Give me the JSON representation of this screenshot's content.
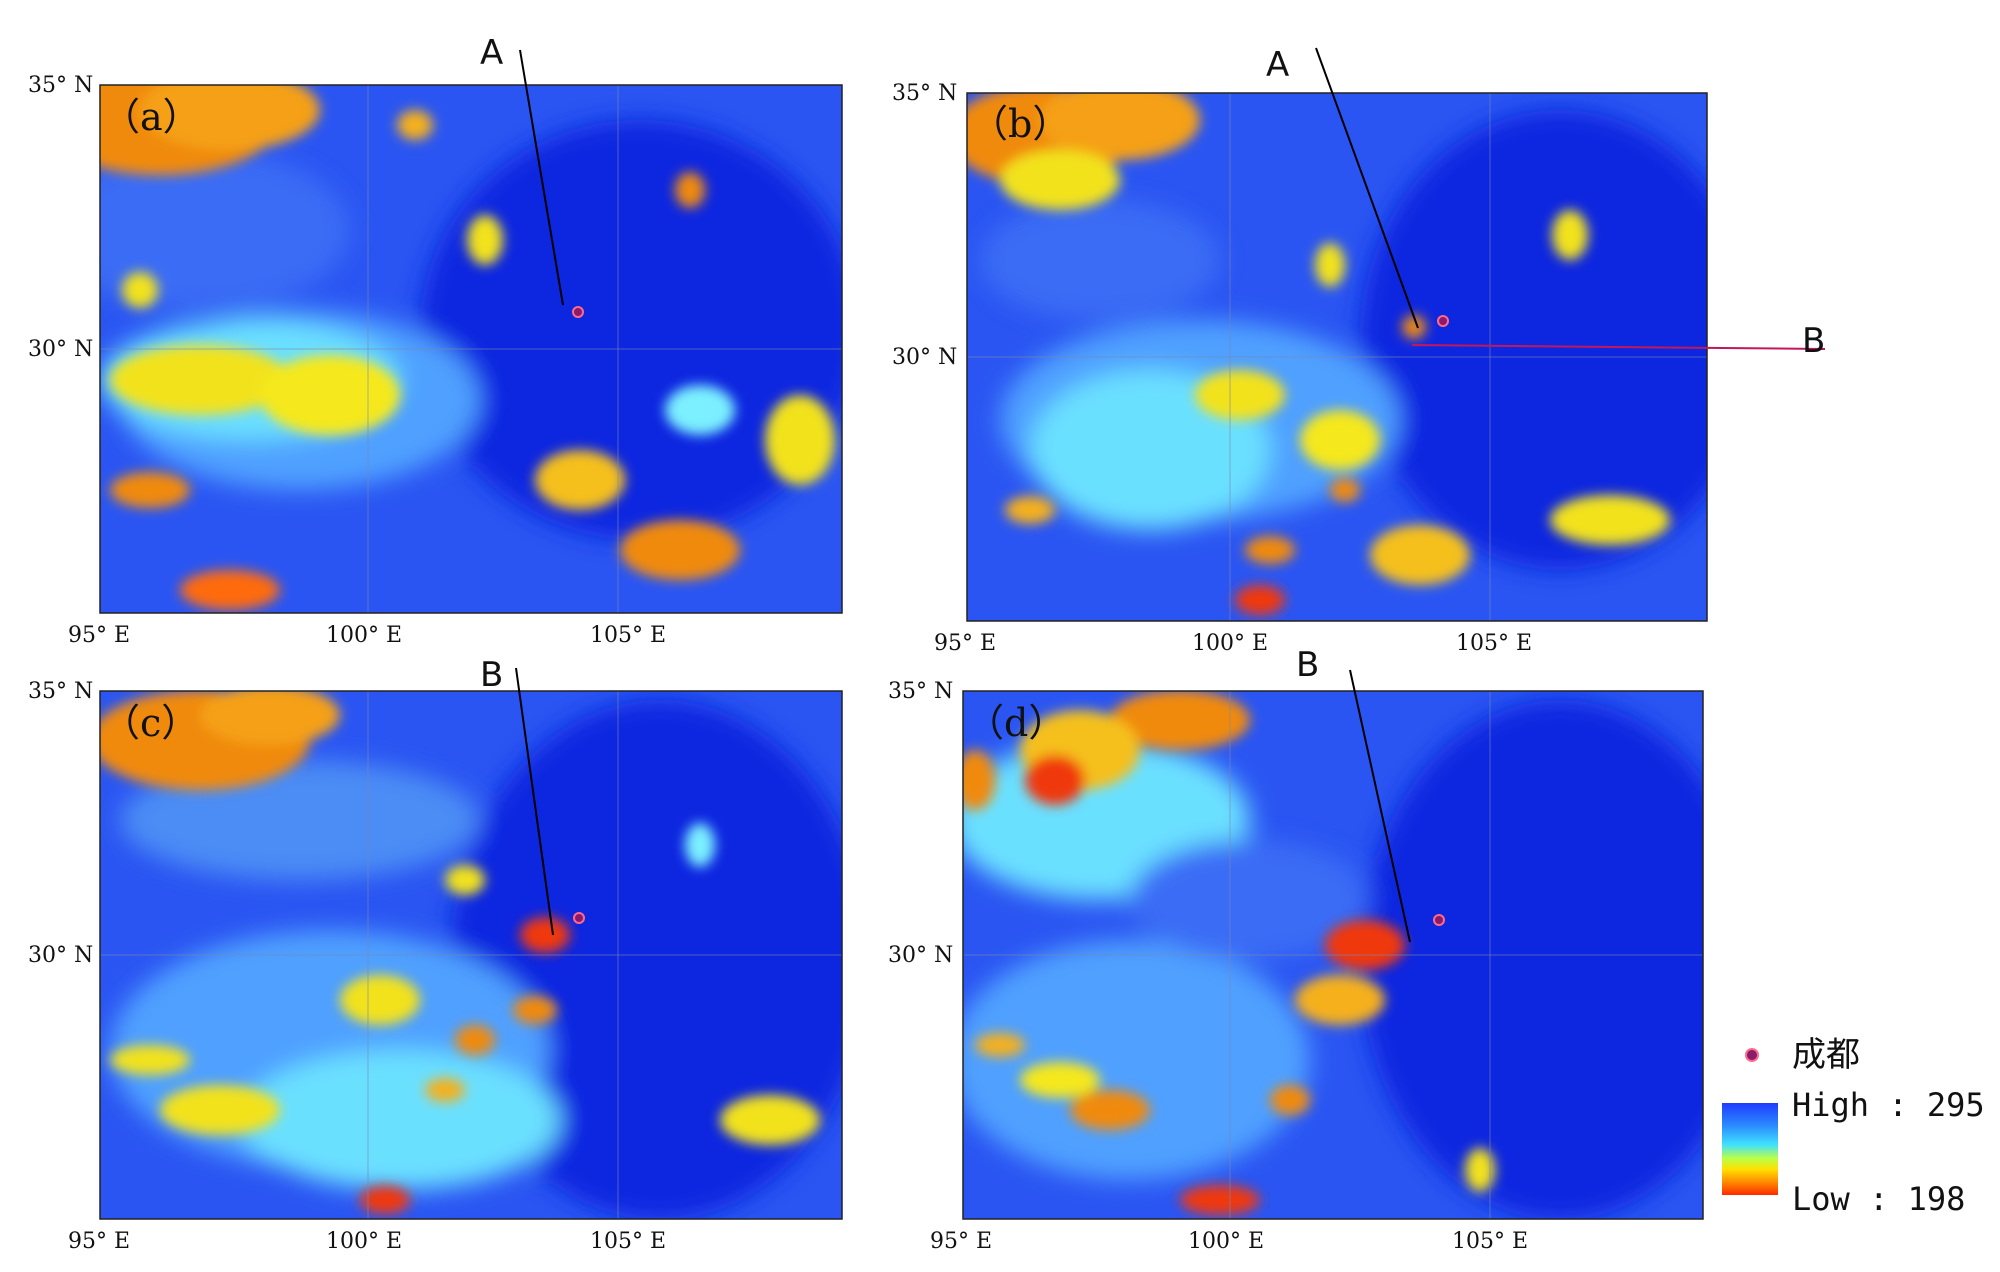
{
  "panels": [
    {
      "id": "a",
      "label": "（a）",
      "lat_top": "35° N",
      "lat_mid": "30° N",
      "lon": [
        "95° E",
        "100° E",
        "105° E"
      ],
      "markers": [
        {
          "label": "A",
          "color": "#000000"
        }
      ]
    },
    {
      "id": "b",
      "label": "（b）",
      "lat_top": "35° N",
      "lat_mid": "30° N",
      "lon": [
        "95° E",
        "100° E",
        "105° E"
      ],
      "markers": [
        {
          "label": "A",
          "color": "#000000"
        },
        {
          "label": "B",
          "color": "#c2185b"
        }
      ]
    },
    {
      "id": "c",
      "label": "（c）",
      "lat_top": "35° N",
      "lat_mid": "30° N",
      "lon": [
        "95° E",
        "100° E",
        "105° E"
      ],
      "markers": [
        {
          "label": "B",
          "color": "#000000"
        }
      ]
    },
    {
      "id": "d",
      "label": "（d）",
      "lat_top": "35° N",
      "lat_mid": "30° N",
      "lon": [
        "95° E",
        "100° E",
        "105° E"
      ],
      "markers": [
        {
          "label": "B",
          "color": "#000000"
        }
      ]
    }
  ],
  "legend": {
    "city": "成都",
    "city_color": "#8b1a6b",
    "high": "High : 295",
    "low": "Low : 198",
    "ramp": [
      "#1e3cff",
      "#2b8cff",
      "#3fe0ff",
      "#b8ff4a",
      "#ffe000",
      "#ff8a00",
      "#ff2a00"
    ]
  },
  "colors": {
    "ocean_blue": "#2447f0",
    "deep_blue": "#0f2be0",
    "cyan": "#40c8ff",
    "yellow": "#f5e61a",
    "orange": "#ff8c1a",
    "red": "#f0380e"
  }
}
